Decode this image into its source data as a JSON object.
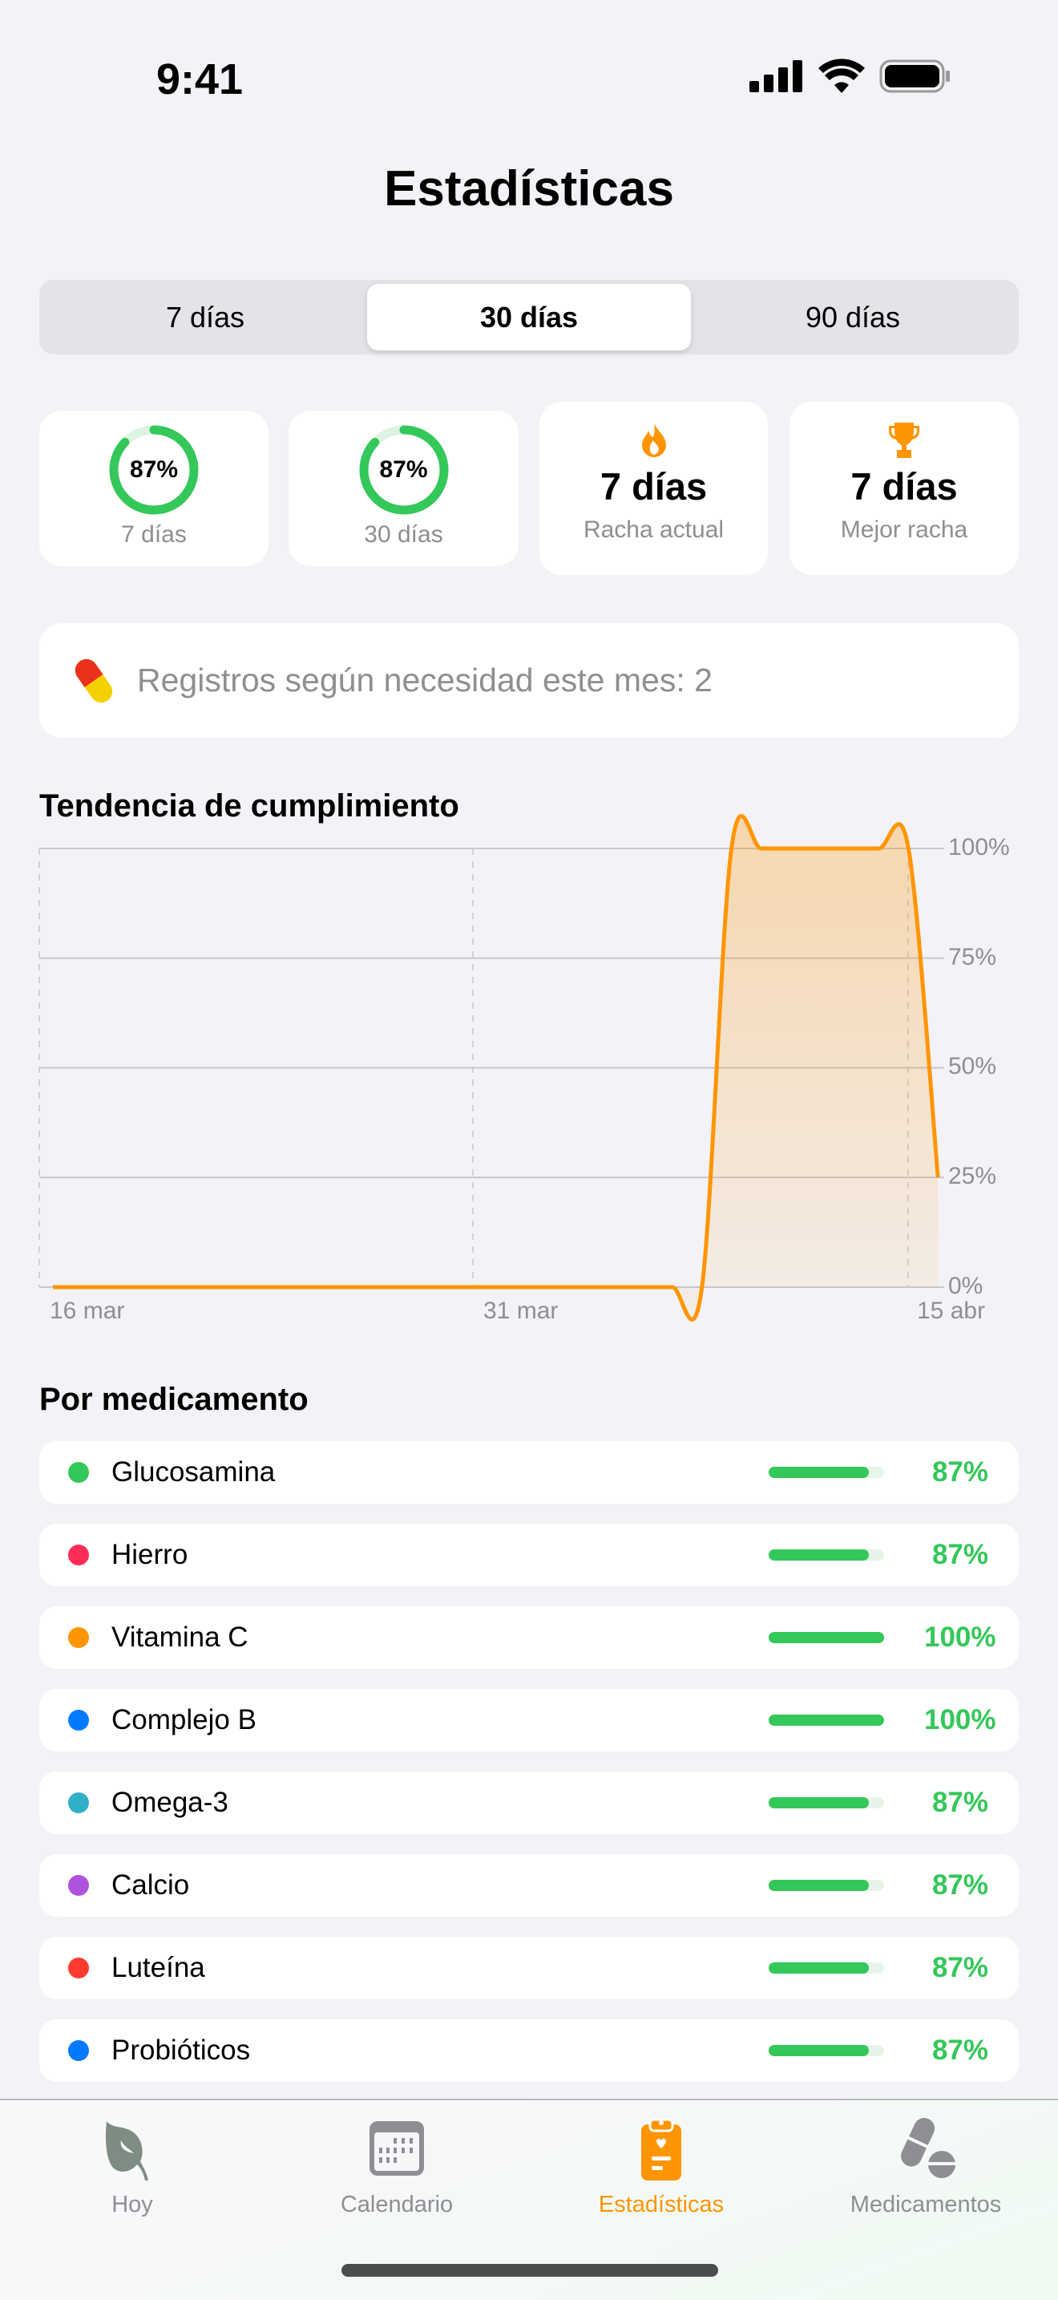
{
  "status": {
    "time": "9:41"
  },
  "title": "Estadísticas",
  "segments": [
    {
      "label": "7 días",
      "selected": false
    },
    {
      "label": "30 días",
      "selected": true
    },
    {
      "label": "90 días",
      "selected": false
    }
  ],
  "stats": {
    "ring7": {
      "value": "87%",
      "fraction": 0.87,
      "label": "7 días"
    },
    "ring30": {
      "value": "87%",
      "fraction": 0.87,
      "label": "30 días"
    },
    "current": {
      "icon": "flame-icon",
      "value": "7 días",
      "label": "Racha actual"
    },
    "best": {
      "icon": "trophy-icon",
      "value": "7 días",
      "label": "Mejor racha"
    }
  },
  "as_needed": {
    "icon": "pill-icon",
    "text": "Registros según necesidad este mes: 2"
  },
  "colors": {
    "accent": "#FF9500",
    "green": "#34C759"
  },
  "chart_data": {
    "type": "area",
    "title": "Tendencia de cumplimiento",
    "x_tick_labels": [
      "16 mar",
      "31 mar",
      "15 abr"
    ],
    "y_tick_labels": [
      "100%",
      "75%",
      "50%",
      "25%",
      "0%"
    ],
    "ylim": [
      0,
      100
    ],
    "grid": true,
    "x": [
      "16 mar",
      "17 mar",
      "18 mar",
      "19 mar",
      "20 mar",
      "21 mar",
      "22 mar",
      "23 mar",
      "24 mar",
      "25 mar",
      "26 mar",
      "27 mar",
      "28 mar",
      "29 mar",
      "30 mar",
      "31 mar",
      "1 abr",
      "2 abr",
      "3 abr",
      "4 abr",
      "5 abr",
      "6 abr",
      "7 abr",
      "8 abr",
      "9 abr",
      "10 abr",
      "11 abr",
      "12 abr",
      "13 abr",
      "14 abr",
      "15 abr"
    ],
    "values": [
      0,
      0,
      0,
      0,
      0,
      0,
      0,
      0,
      0,
      0,
      0,
      0,
      0,
      0,
      0,
      0,
      0,
      0,
      0,
      0,
      0,
      0,
      0,
      100,
      100,
      100,
      100,
      100,
      100,
      100,
      25
    ],
    "color": "#FF9500"
  },
  "by_med": {
    "title": "Por medicamento",
    "items": [
      {
        "name": "Glucosamina",
        "color": "#34C759",
        "percent": "87%",
        "fraction": 0.87
      },
      {
        "name": "Hierro",
        "color": "#FF2D55",
        "percent": "87%",
        "fraction": 0.87
      },
      {
        "name": "Vitamina C",
        "color": "#FF9500",
        "percent": "100%",
        "fraction": 1
      },
      {
        "name": "Complejo B",
        "color": "#007AFF",
        "percent": "100%",
        "fraction": 1
      },
      {
        "name": "Omega-3",
        "color": "#30B0C7",
        "percent": "87%",
        "fraction": 0.87
      },
      {
        "name": "Calcio",
        "color": "#AF52DE",
        "percent": "87%",
        "fraction": 0.87
      },
      {
        "name": "Luteína",
        "color": "#FF3B30",
        "percent": "87%",
        "fraction": 0.87
      },
      {
        "name": "Probióticos",
        "color": "#007AFF",
        "percent": "87%",
        "fraction": 0.87
      }
    ]
  },
  "tabs": [
    {
      "label": "Hoy",
      "icon": "leaf-icon",
      "active": false
    },
    {
      "label": "Calendario",
      "icon": "calendar-icon",
      "active": false
    },
    {
      "label": "Estadísticas",
      "icon": "clipboard-icon",
      "active": true
    },
    {
      "label": "Medicamentos",
      "icon": "pills-icon",
      "active": false
    }
  ]
}
